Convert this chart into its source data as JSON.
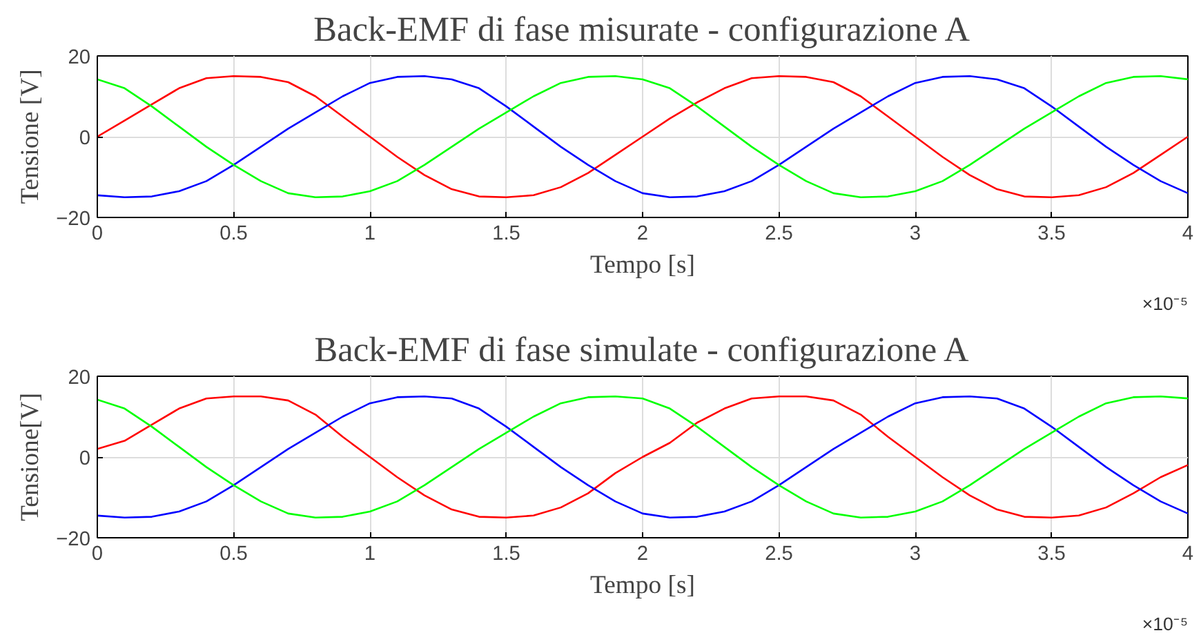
{
  "chart_data": [
    {
      "type": "line",
      "title": "Back-EMF di fase misurate - configurazione A",
      "xlabel": "Tempo [s]",
      "ylabel": "Tensione [V]",
      "annotations": [
        "×10⁻⁵"
      ],
      "x": [
        0,
        0.1,
        0.2,
        0.3,
        0.4,
        0.5,
        0.6,
        0.7,
        0.8,
        0.9,
        1,
        1.1,
        1.2,
        1.3,
        1.4,
        1.5,
        1.6,
        1.7,
        1.8,
        1.9,
        2,
        2.1,
        2.2,
        2.3,
        2.4,
        2.5,
        2.6,
        2.7,
        2.8,
        2.9,
        3,
        3.1,
        3.2,
        3.3,
        3.4,
        3.5,
        3.6,
        3.7,
        3.8,
        3.9,
        4
      ],
      "xlim": [
        0,
        4
      ],
      "xticks": [
        0,
        0.5,
        1,
        1.5,
        2,
        2.5,
        3,
        3.5,
        4
      ],
      "ylim": [
        -20,
        20
      ],
      "yticks": [
        -20,
        0,
        20
      ],
      "grid": true,
      "series": [
        {
          "color": "#ff0000",
          "values": [
            0,
            4,
            8,
            12,
            14.5,
            15,
            14.8,
            13.5,
            10,
            5,
            0,
            -5,
            -9.5,
            -13,
            -14.8,
            -15,
            -14.5,
            -12.5,
            -9,
            -4.5,
            0,
            4.5,
            8.5,
            12,
            14.5,
            15,
            14.8,
            13.5,
            10,
            5,
            0,
            -5,
            -9.5,
            -13,
            -14.8,
            -15,
            -14.5,
            -12.5,
            -9,
            -4.5,
            0
          ]
        },
        {
          "color": "#0000ff",
          "values": [
            -14.5,
            -15,
            -14.8,
            -13.5,
            -11,
            -7,
            -2.5,
            2,
            6,
            10,
            13.3,
            14.8,
            15,
            14.2,
            12,
            7.5,
            2.5,
            -2.5,
            -7,
            -11,
            -14,
            -15,
            -14.8,
            -13.5,
            -11,
            -7,
            -2.5,
            2,
            6,
            10,
            13.3,
            14.8,
            15,
            14.2,
            12,
            7.5,
            2.5,
            -2.5,
            -7,
            -11,
            -14
          ]
        },
        {
          "color": "#00ff00",
          "values": [
            14.2,
            12,
            7.5,
            2.5,
            -2.5,
            -7,
            -11,
            -14,
            -15,
            -14.8,
            -13.5,
            -11,
            -7,
            -2.5,
            2,
            6,
            10,
            13.3,
            14.8,
            15,
            14.2,
            12,
            7.5,
            2.5,
            -2.5,
            -7,
            -11,
            -14,
            -15,
            -14.8,
            -13.5,
            -11,
            -7,
            -2.5,
            2,
            6,
            10,
            13.3,
            14.8,
            15,
            14.2
          ]
        }
      ]
    },
    {
      "type": "line",
      "title": "Back-EMF di fase simulate - configurazione A",
      "xlabel": "Tempo [s]",
      "ylabel": "Tensione[V]",
      "annotations": [
        "×10⁻⁵"
      ],
      "x": [
        0,
        0.1,
        0.2,
        0.3,
        0.4,
        0.5,
        0.6,
        0.7,
        0.8,
        0.9,
        1,
        1.1,
        1.2,
        1.3,
        1.4,
        1.5,
        1.6,
        1.7,
        1.8,
        1.9,
        2,
        2.1,
        2.2,
        2.3,
        2.4,
        2.5,
        2.6,
        2.7,
        2.8,
        2.9,
        3,
        3.1,
        3.2,
        3.3,
        3.4,
        3.5,
        3.6,
        3.7,
        3.8,
        3.9,
        4
      ],
      "xlim": [
        0,
        4
      ],
      "xticks": [
        0,
        0.5,
        1,
        1.5,
        2,
        2.5,
        3,
        3.5,
        4
      ],
      "ylim": [
        -20,
        20
      ],
      "yticks": [
        -20,
        0,
        20
      ],
      "grid": true,
      "series": [
        {
          "color": "#ff0000",
          "values": [
            2,
            4,
            8,
            12,
            14.5,
            15,
            15,
            14,
            10.5,
            5,
            0,
            -5,
            -9.5,
            -13,
            -14.8,
            -15,
            -14.5,
            -12.5,
            -9,
            -4,
            0,
            3.5,
            8.5,
            12,
            14.5,
            15,
            15,
            14,
            10.5,
            5,
            0,
            -5,
            -9.5,
            -13,
            -14.8,
            -15,
            -14.5,
            -12.5,
            -9,
            -5,
            -2
          ]
        },
        {
          "color": "#0000ff",
          "values": [
            -14.5,
            -15,
            -14.8,
            -13.5,
            -11,
            -7,
            -2.5,
            2,
            6,
            10,
            13.3,
            14.8,
            15,
            14.5,
            12,
            7.5,
            2.5,
            -2.5,
            -7,
            -11,
            -14,
            -15,
            -14.8,
            -13.5,
            -11,
            -7,
            -2.5,
            2,
            6,
            10,
            13.3,
            14.8,
            15,
            14.5,
            12,
            7.5,
            2.5,
            -2.5,
            -7,
            -11,
            -14
          ]
        },
        {
          "color": "#00ff00",
          "values": [
            14.2,
            12,
            7.5,
            2.5,
            -2.5,
            -7,
            -11,
            -14,
            -15,
            -14.8,
            -13.5,
            -11,
            -7,
            -2.5,
            2,
            6,
            10,
            13.3,
            14.8,
            15,
            14.5,
            12,
            7.5,
            2.5,
            -2.5,
            -7,
            -11,
            -14,
            -15,
            -14.8,
            -13.5,
            -11,
            -7,
            -2.5,
            2,
            6,
            10,
            13.3,
            14.8,
            15,
            14.5
          ]
        }
      ]
    }
  ]
}
